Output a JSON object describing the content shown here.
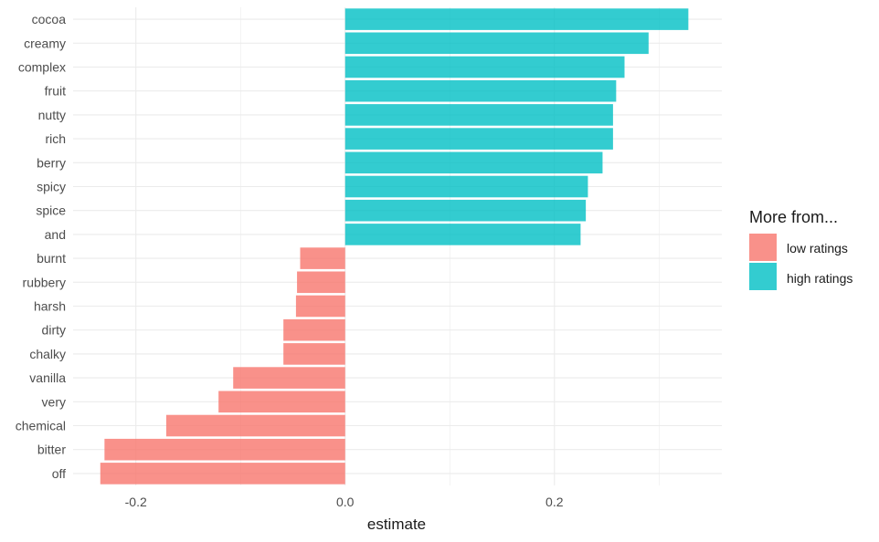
{
  "chart_data": {
    "type": "bar",
    "orientation": "horizontal",
    "categories": [
      "cocoa",
      "creamy",
      "complex",
      "fruit",
      "nutty",
      "rich",
      "berry",
      "spicy",
      "spice",
      "and",
      "burnt",
      "rubbery",
      "harsh",
      "dirty",
      "chalky",
      "vanilla",
      "very",
      "chemical",
      "bitter",
      "off"
    ],
    "values": [
      0.328,
      0.29,
      0.267,
      0.259,
      0.256,
      0.256,
      0.246,
      0.232,
      0.23,
      0.225,
      -0.043,
      -0.046,
      -0.047,
      -0.059,
      -0.059,
      -0.107,
      -0.121,
      -0.171,
      -0.23,
      -0.234
    ],
    "groups": [
      "high ratings",
      "high ratings",
      "high ratings",
      "high ratings",
      "high ratings",
      "high ratings",
      "high ratings",
      "high ratings",
      "high ratings",
      "high ratings",
      "low ratings",
      "low ratings",
      "low ratings",
      "low ratings",
      "low ratings",
      "low ratings",
      "low ratings",
      "low ratings",
      "low ratings",
      "low ratings"
    ],
    "xlabel": "estimate",
    "ylabel": "",
    "xlim": [
      -0.26,
      0.36
    ],
    "xticks": [
      -0.2,
      0.0,
      0.2
    ],
    "xtick_labels": [
      "-0.2",
      "0.0",
      "0.2"
    ],
    "grid": true,
    "legend": {
      "title": "More from...",
      "position": "right",
      "entries": [
        {
          "label": "low ratings",
          "color": "#F8766D"
        },
        {
          "label": "high ratings",
          "color": "#00BFC4"
        }
      ]
    }
  }
}
